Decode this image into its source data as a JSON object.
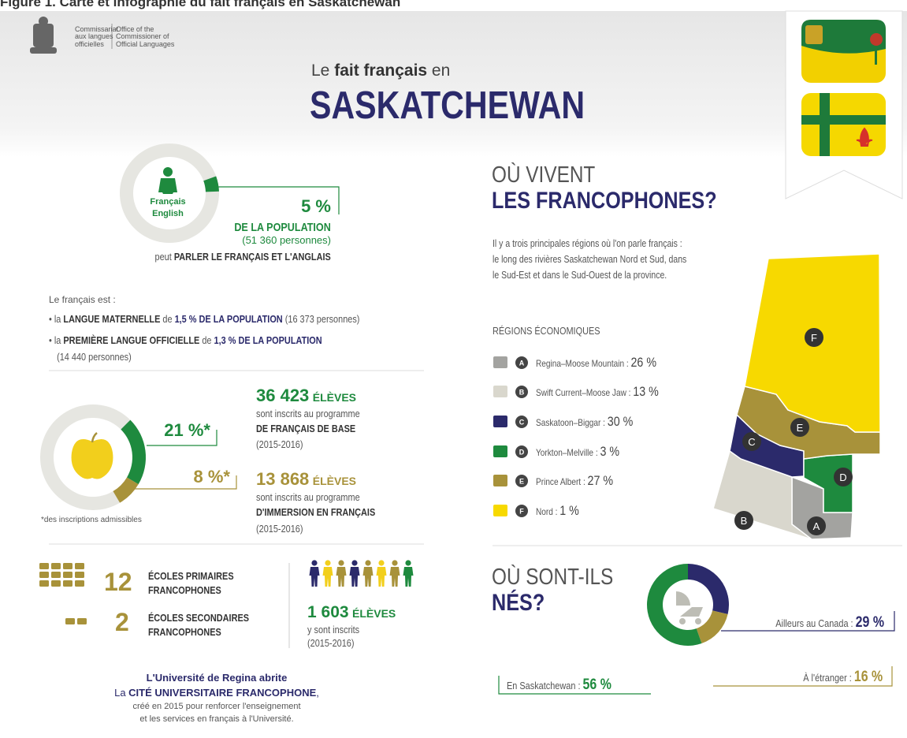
{
  "caption": "Figure 1. Carte et infographie du fait français en Saskatchewan",
  "logo": {
    "fr": [
      "Commissariat",
      "aux langues",
      "officielles"
    ],
    "en": [
      "Office of the",
      "Commissioner of",
      "Official Languages"
    ]
  },
  "header": {
    "pre": "Le ",
    "bold": "fait français",
    "post": " en",
    "title": "SASKATCHEWAN"
  },
  "bilingual": {
    "icon_fr": "Français",
    "icon_en": "English",
    "percent": {
      "value": 5,
      "label": "5 %"
    },
    "line1": "DE LA POPULATION",
    "line2": "(51 360 personnes)",
    "line3_pre": "peut ",
    "line3_bold": "PARLER LE FRANÇAIS ET L'ANGLAIS"
  },
  "french_is": {
    "intro": "Le français est :",
    "items": [
      {
        "pre": "• la ",
        "b1": "LANGUE MATERNELLE",
        "mid": " de ",
        "b2": "1,5 % DE LA POPULATION",
        "post": " (16 373 personnes)"
      },
      {
        "pre": "• la ",
        "b1": "PREMIÈRE LANGUE OFFICIELLE",
        "mid": " de ",
        "b2": "1,3 % DE LA POPULATION",
        "post": "(14 440 personnes)"
      }
    ]
  },
  "enrolment": {
    "core": {
      "percent": {
        "value": 21,
        "label": "21 %*"
      },
      "count": "36 423",
      "unit": "ÉLÈVES",
      "l1": "sont inscrits au programme",
      "l2": "DE FRANÇAIS DE BASE",
      "l3": "(2015-2016)"
    },
    "immersion": {
      "percent": {
        "value": 8,
        "label": "8 %*"
      },
      "count": "13 868",
      "unit": "ÉLÈVES",
      "l1": "sont inscrits au programme",
      "l2": "D'IMMERSION EN FRANÇAIS",
      "l3": "(2015-2016)"
    },
    "note": "*des inscriptions admissibles"
  },
  "schools": {
    "primary": {
      "count": 12,
      "l1": "ÉCOLES PRIMAIRES",
      "l2": "FRANCOPHONES"
    },
    "secondary": {
      "count": 2,
      "l1": "ÉCOLES SECONDAIRES",
      "l2": "FRANCOPHONES"
    },
    "students": {
      "count": "1 603",
      "unit": "ÉLÈVES",
      "l1": "y sont inscrits",
      "l2": "(2015-2016)"
    }
  },
  "university": {
    "l1": "L'Université de Regina abrite",
    "l2_pre": "La ",
    "l2_bold": "CITÉ UNIVERSITAIRE FRANCOPHONE",
    "l2_post": ",",
    "l3": "créé en 2015 pour renforcer l'enseignement",
    "l4": "et les services en français à l'Université."
  },
  "where": {
    "title1": "OÙ VIVENT",
    "title2": "LES FRANCOPHONES?",
    "lines": [
      "Il y a trois principales régions où l'on parle français :",
      "le long des rivières Saskatchewan Nord et Sud, dans",
      "le Sud-Est et dans le Sud-Ouest de la province."
    ],
    "regions_title": "RÉGIONS ÉCONOMIQUES",
    "regions": [
      {
        "letter": "A",
        "name": "Regina–Moose Mountain :",
        "value": 26,
        "label": "26 %",
        "color": "#a3a3a0"
      },
      {
        "letter": "B",
        "name": "Swift Current–Moose Jaw :",
        "value": 13,
        "label": "13 %",
        "color": "#d9d7cd"
      },
      {
        "letter": "C",
        "name": "Saskatoon–Biggar :",
        "value": 30,
        "label": "30 %",
        "color": "#2b2a6b"
      },
      {
        "letter": "D",
        "name": "Yorkton–Melville :",
        "value": 3,
        "label": "3 %",
        "color": "#1e8a3e"
      },
      {
        "letter": "E",
        "name": "Prince Albert :",
        "value": 27,
        "label": "27 %",
        "color": "#a8923a"
      },
      {
        "letter": "F",
        "name": "Nord :",
        "value": 1,
        "label": "1 %",
        "color": "#f7d900"
      }
    ]
  },
  "born": {
    "title1": "OÙ SONT-ILS",
    "title2": "NÉS?",
    "segments": [
      {
        "name": "Ailleurs au Canada :",
        "value": 29,
        "label": "29 %",
        "color": "#2b2a6b"
      },
      {
        "name": "À l'étranger :",
        "value": 16,
        "label": "16 %",
        "color": "#a8923a"
      },
      {
        "name": "En Saskatchewan :",
        "value": 56,
        "label": "56 %",
        "color": "#1e8a3e"
      }
    ]
  }
}
